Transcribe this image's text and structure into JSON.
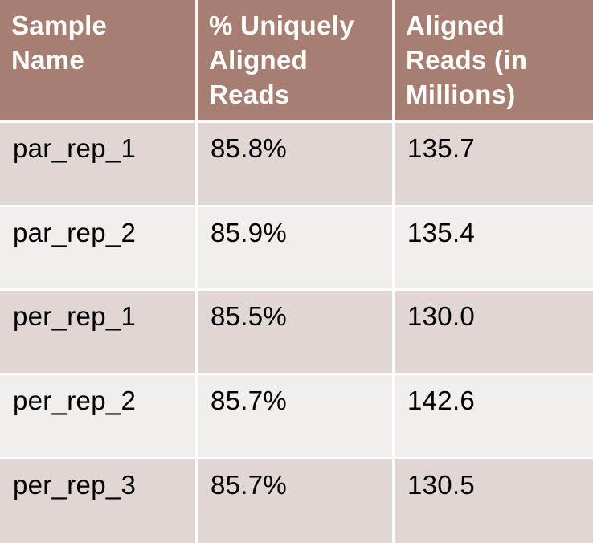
{
  "table": {
    "headers": [
      "Sample\nName",
      "% Uniquely\nAligned\nReads",
      "Aligned\nReads (in\nMillions)"
    ],
    "rows": [
      [
        "par_rep_1",
        "85.8%",
        "135.7"
      ],
      [
        "par_rep_2",
        "85.9%",
        "135.4"
      ],
      [
        "per_rep_1",
        "85.5%",
        "130.0"
      ],
      [
        "per_rep_2",
        "85.7%",
        "142.6"
      ],
      [
        "per_rep_3",
        "85.7%",
        "130.5"
      ]
    ]
  },
  "colors": {
    "header_bg": "#a67f72",
    "row_dark": "#e0d6d4",
    "row_light": "#f1eeec",
    "header_text": "#ffffff",
    "body_text": "#000000"
  }
}
